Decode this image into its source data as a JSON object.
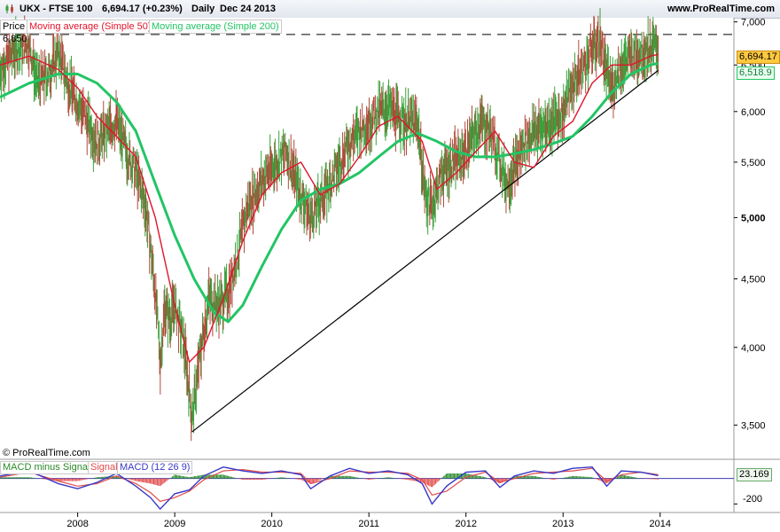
{
  "header": {
    "symbol": "UKX - FTSE 100",
    "last": "6,694.17 (+0.23%)",
    "period": "Daily",
    "date": "Dec 24 2013",
    "site": "www.ProRealTime.com"
  },
  "price_legend": {
    "price": "Price",
    "ma50": "Moving average (Simple 50)",
    "ma200": "Moving average (Simple 200)"
  },
  "macd_legend": {
    "hist": "MACD minus Signal",
    "signal": "Signal",
    "macd": "MACD (12 26 9)"
  },
  "copyright": "© ProRealTime.com",
  "tags": {
    "last_price": "6,694.17",
    "ma200_value": "6,518.9",
    "resistance": "6,850",
    "macd_value": "23.169",
    "macd_tick": "-200"
  },
  "colors": {
    "bull": "#3aa03a",
    "bear": "#b04a3a",
    "ma50": "#e0142a",
    "ma200": "#22c564",
    "macd": "#3838c8",
    "signal": "#e24a4a",
    "hist": "#2a8a2a"
  },
  "chart_data": [
    {
      "type": "line",
      "title": "UKX - FTSE 100",
      "scale": "log",
      "ylim": [
        3300,
        7050
      ],
      "y_ticks": [
        "7,000",
        "6,500",
        "6,000",
        "5,500",
        "5,000",
        "4,500",
        "4,000",
        "3,500"
      ],
      "y_tick_values": [
        7000,
        6500,
        6000,
        5500,
        5000,
        4500,
        4000,
        3500
      ],
      "x_ticks": [
        "2008",
        "2009",
        "2010",
        "2011",
        "2012",
        "2013",
        "2014"
      ],
      "x_tick_values": [
        2008,
        2009,
        2010,
        2011,
        2012,
        2013,
        2014
      ],
      "xlim": [
        2007.2,
        2014.76
      ],
      "horizontal_line": {
        "label": "6,850",
        "value": 6850,
        "style": "dashed"
      },
      "trendline": {
        "points": [
          [
            2009.18,
            3460
          ],
          [
            2013.98,
            6440
          ]
        ]
      },
      "series": [
        {
          "name": "Price",
          "x": [
            2007.2,
            2007.3,
            2007.4,
            2007.5,
            2007.58,
            2007.7,
            2007.8,
            2007.9,
            2008.0,
            2008.1,
            2008.2,
            2008.3,
            2008.4,
            2008.5,
            2008.6,
            2008.7,
            2008.8,
            2008.85,
            2008.9,
            2008.95,
            2009.0,
            2009.1,
            2009.18,
            2009.25,
            2009.35,
            2009.45,
            2009.55,
            2009.65,
            2009.75,
            2009.85,
            2009.95,
            2010.05,
            2010.15,
            2010.3,
            2010.4,
            2010.5,
            2010.6,
            2010.7,
            2010.8,
            2010.9,
            2011.0,
            2011.1,
            2011.2,
            2011.3,
            2011.4,
            2011.5,
            2011.58,
            2011.65,
            2011.75,
            2011.85,
            2011.95,
            2012.05,
            2012.15,
            2012.25,
            2012.35,
            2012.42,
            2012.5,
            2012.6,
            2012.7,
            2012.8,
            2012.9,
            2013.0,
            2013.1,
            2013.2,
            2013.3,
            2013.38,
            2013.45,
            2013.5,
            2013.6,
            2013.7,
            2013.8,
            2013.9,
            2013.98
          ],
          "y": [
            6450,
            6600,
            6700,
            6750,
            6300,
            6400,
            6650,
            6300,
            6100,
            5900,
            5700,
            5800,
            5900,
            5600,
            5400,
            5100,
            4400,
            3900,
            4300,
            4200,
            4300,
            4000,
            3530,
            3900,
            4350,
            4300,
            4400,
            4700,
            5100,
            5250,
            5400,
            5500,
            5600,
            5200,
            5000,
            5150,
            5300,
            5500,
            5700,
            5800,
            5900,
            6000,
            6050,
            5950,
            5900,
            5900,
            5200,
            5100,
            5400,
            5500,
            5550,
            5700,
            5900,
            5800,
            5500,
            5300,
            5450,
            5700,
            5800,
            5850,
            5900,
            6000,
            6300,
            6450,
            6700,
            6800,
            6400,
            6250,
            6500,
            6600,
            6650,
            6700,
            6694
          ]
        },
        {
          "name": "Moving average (Simple 50)",
          "x": [
            2007.2,
            2007.5,
            2007.8,
            2008.0,
            2008.2,
            2008.4,
            2008.6,
            2008.8,
            2009.0,
            2009.15,
            2009.3,
            2009.5,
            2009.7,
            2009.9,
            2010.1,
            2010.3,
            2010.5,
            2010.7,
            2010.9,
            2011.1,
            2011.3,
            2011.55,
            2011.7,
            2011.9,
            2012.1,
            2012.3,
            2012.5,
            2012.7,
            2012.9,
            2013.1,
            2013.3,
            2013.5,
            2013.7,
            2013.9,
            2013.98
          ],
          "y": [
            6500,
            6600,
            6450,
            6250,
            5950,
            5750,
            5550,
            5000,
            4300,
            3900,
            4000,
            4350,
            4800,
            5200,
            5400,
            5500,
            5200,
            5300,
            5550,
            5850,
            5950,
            5700,
            5250,
            5400,
            5600,
            5800,
            5500,
            5450,
            5750,
            5900,
            6300,
            6500,
            6500,
            6600,
            6620
          ]
        },
        {
          "name": "Moving average (Simple 200)",
          "x": [
            2007.2,
            2007.5,
            2007.8,
            2008.0,
            2008.2,
            2008.4,
            2008.6,
            2008.8,
            2009.0,
            2009.2,
            2009.4,
            2009.55,
            2009.7,
            2009.9,
            2010.1,
            2010.3,
            2010.5,
            2010.7,
            2010.9,
            2011.1,
            2011.3,
            2011.5,
            2011.7,
            2011.9,
            2012.1,
            2012.3,
            2012.5,
            2012.7,
            2012.9,
            2013.1,
            2013.3,
            2013.5,
            2013.7,
            2013.9,
            2013.98
          ],
          "y": [
            6150,
            6300,
            6400,
            6400,
            6300,
            6100,
            5800,
            5300,
            4850,
            4500,
            4250,
            4180,
            4300,
            4600,
            4900,
            5150,
            5250,
            5300,
            5400,
            5550,
            5700,
            5780,
            5700,
            5600,
            5550,
            5550,
            5580,
            5620,
            5680,
            5750,
            5950,
            6200,
            6400,
            6500,
            6519
          ]
        }
      ]
    },
    {
      "type": "line",
      "title": "MACD (12 26 9)",
      "y_ticks": [
        "-200"
      ],
      "y_tick_values": [
        -200
      ],
      "ylim": [
        -260,
        130
      ],
      "x_tick_values": [
        2008,
        2009,
        2010,
        2011,
        2012,
        2013,
        2014
      ],
      "series": [
        {
          "name": "MACD (12 26 9)",
          "x": [
            2007.2,
            2007.5,
            2007.8,
            2008.0,
            2008.2,
            2008.4,
            2008.6,
            2008.75,
            2008.85,
            2009.0,
            2009.15,
            2009.3,
            2009.5,
            2009.7,
            2009.9,
            2010.1,
            2010.3,
            2010.4,
            2010.6,
            2010.8,
            2011.0,
            2011.2,
            2011.4,
            2011.55,
            2011.65,
            2011.8,
            2012.0,
            2012.2,
            2012.35,
            2012.5,
            2012.7,
            2012.9,
            2013.1,
            2013.3,
            2013.45,
            2013.6,
            2013.8,
            2013.98
          ],
          "y": [
            20,
            60,
            -40,
            -80,
            -30,
            40,
            -60,
            -150,
            -240,
            -120,
            -90,
            20,
            90,
            60,
            40,
            60,
            30,
            -80,
            20,
            80,
            40,
            60,
            30,
            -40,
            -200,
            -60,
            50,
            60,
            -70,
            20,
            60,
            40,
            80,
            90,
            -60,
            60,
            50,
            23
          ]
        },
        {
          "name": "Signal",
          "x": [
            2007.2,
            2007.5,
            2007.8,
            2008.0,
            2008.2,
            2008.4,
            2008.6,
            2008.75,
            2008.85,
            2009.0,
            2009.15,
            2009.3,
            2009.5,
            2009.7,
            2009.9,
            2010.1,
            2010.3,
            2010.4,
            2010.6,
            2010.8,
            2011.0,
            2011.2,
            2011.4,
            2011.55,
            2011.65,
            2011.8,
            2012.0,
            2012.2,
            2012.35,
            2012.5,
            2012.7,
            2012.9,
            2013.1,
            2013.3,
            2013.45,
            2013.6,
            2013.8,
            2013.98
          ],
          "y": [
            10,
            50,
            -20,
            -60,
            -40,
            20,
            -40,
            -110,
            -180,
            -150,
            -100,
            -10,
            60,
            70,
            50,
            50,
            40,
            -40,
            0,
            60,
            50,
            50,
            40,
            -10,
            -130,
            -100,
            10,
            50,
            -30,
            0,
            40,
            50,
            60,
            80,
            -20,
            30,
            50,
            30
          ]
        }
      ]
    }
  ]
}
